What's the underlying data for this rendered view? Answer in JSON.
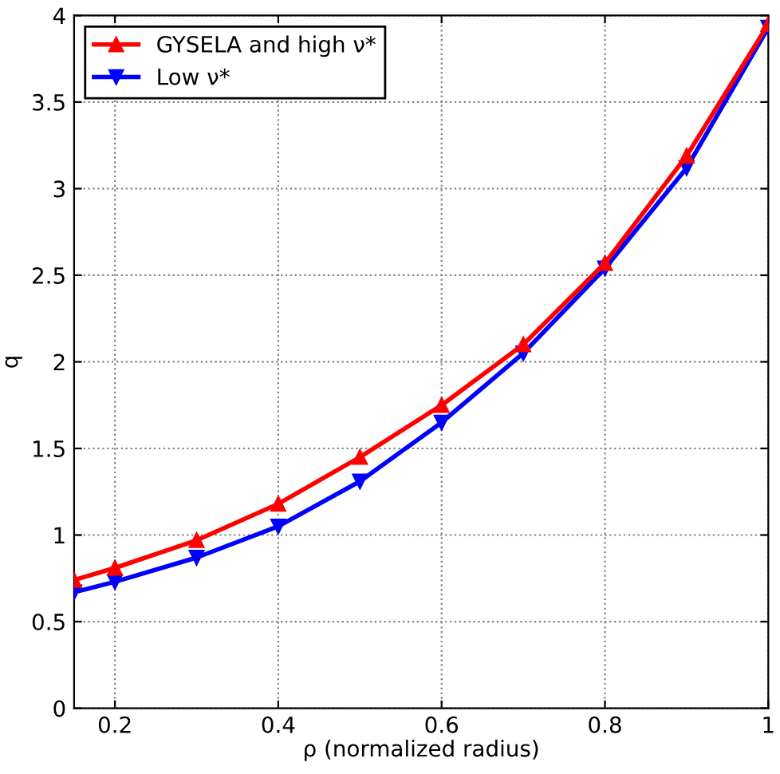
{
  "chart_data": {
    "type": "line",
    "xlabel": "ρ (normalized radius)",
    "ylabel": "q",
    "xlim": [
      0.15,
      1
    ],
    "ylim": [
      0,
      4
    ],
    "xticks": [
      0.2,
      0.4,
      0.6,
      0.8,
      1
    ],
    "yticks": [
      0,
      0.5,
      1,
      1.5,
      2,
      2.5,
      3,
      3.5,
      4
    ],
    "grid": true,
    "legend": "top left",
    "line_style": "solid",
    "series": [
      {
        "name": "GYSELA and high ν*",
        "color": "#ff0000",
        "marker": "triangle",
        "x": [
          0.15,
          0.2,
          0.3,
          0.4,
          0.5,
          0.6,
          0.7,
          0.8,
          0.9,
          1.0
        ],
        "values": [
          0.74,
          0.81,
          0.97,
          1.18,
          1.45,
          1.75,
          2.1,
          2.57,
          3.19,
          3.95
        ]
      },
      {
        "name": "Low ν*",
        "color": "#0000ff",
        "marker": "triangle_down",
        "x": [
          0.15,
          0.2,
          0.3,
          0.4,
          0.5,
          0.6,
          0.7,
          0.8,
          0.9,
          1.0
        ],
        "values": [
          0.67,
          0.73,
          0.87,
          1.05,
          1.31,
          1.65,
          2.05,
          2.54,
          3.12,
          3.93
        ]
      }
    ]
  }
}
